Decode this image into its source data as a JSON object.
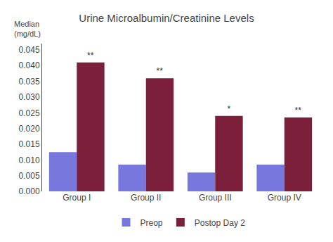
{
  "chart_data": {
    "type": "bar",
    "title": "Urine Microalbumin/Creatinine Levels",
    "ylabel": [
      "Median",
      "(mg/dL)"
    ],
    "categories": [
      "Group I",
      "Group II",
      "Group III",
      "Group IV"
    ],
    "series": [
      {
        "name": "Preop",
        "color": "#7777DD",
        "values": [
          0.0125,
          0.0085,
          0.006,
          0.0085
        ]
      },
      {
        "name": "Postop Day 2",
        "color": "#7B1F3A",
        "values": [
          0.041,
          0.036,
          0.024,
          0.0235
        ],
        "annotations": [
          "**",
          "**",
          "*",
          "**"
        ]
      }
    ],
    "ylim": [
      0,
      0.047
    ],
    "yticks": [
      {
        "value": 0,
        "label": "0.000"
      },
      0.005,
      {
        "value": 0.01,
        "label": "0.010"
      },
      0.015,
      {
        "value": 0.02,
        "label": "0.020"
      },
      0.025,
      {
        "value": 0.03,
        "label": "0.030"
      },
      0.035,
      {
        "value": 0.04,
        "label": "0.040"
      },
      0.045
    ],
    "grid": false,
    "legend": "bottom"
  }
}
